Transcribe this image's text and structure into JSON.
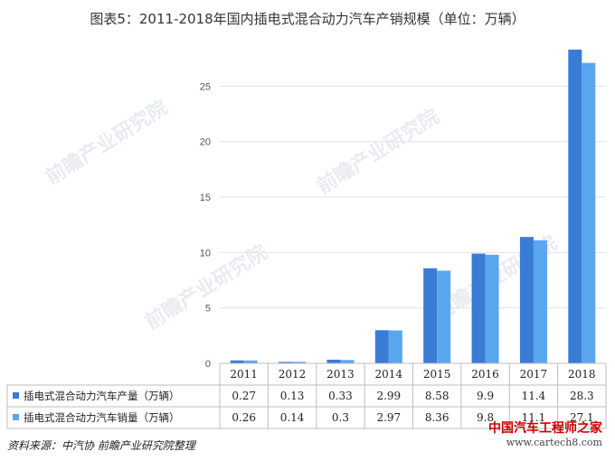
{
  "title": "图表5：2011-2018年国内插电式混合动力汽车产销规模（单位：万辆）",
  "source": "资料来源：中汽协 前瞻产业研究院整理",
  "watermark": "前瞻产业研究院",
  "logo_watermark": {
    "line1": "中国汽车工程师之家",
    "line2": "www.cartech8.com"
  },
  "chart_data": {
    "type": "bar",
    "title": "图表5：2011-2018年国内插电式混合动力汽车产销规模（单位：万辆）",
    "categories": [
      "2011",
      "2012",
      "2013",
      "2014",
      "2015",
      "2016",
      "2017",
      "2018"
    ],
    "y_ticks": [
      "0",
      "5",
      "10",
      "15",
      "20",
      "25"
    ],
    "ylim": [
      0,
      30
    ],
    "grid": true,
    "legend": "table-left",
    "series": [
      {
        "name": "插电式混合动力汽车产量（万辆）",
        "color": "#3a7bd5",
        "values": [
          0.27,
          0.13,
          0.33,
          2.99,
          8.58,
          9.9,
          11.4,
          28.3
        ],
        "labels": [
          "0.27",
          "0.13",
          "0.33",
          "2.99",
          "8.58",
          "9.9",
          "11.4",
          "28.3"
        ]
      },
      {
        "name": "插电式混合动力汽车销量（万辆）",
        "color": "#5aa6ee",
        "values": [
          0.26,
          0.14,
          0.3,
          2.97,
          8.36,
          9.8,
          11.1,
          27.1
        ],
        "labels": [
          "0.26",
          "0.14",
          "0.3",
          "2.97",
          "8.36",
          "9.8",
          "11.1",
          "27.1"
        ]
      }
    ]
  }
}
